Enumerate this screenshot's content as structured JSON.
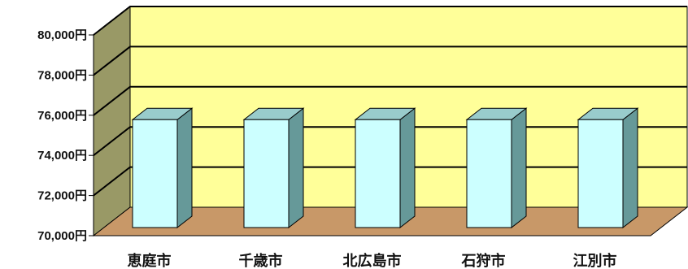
{
  "chart_data": {
    "type": "bar",
    "style": "3d-column",
    "categories": [
      "恵庭市",
      "千歳市",
      "北広島市",
      "石狩市",
      "江別市"
    ],
    "values": [
      75700,
      75700,
      75700,
      75700,
      75700
    ],
    "ylim": [
      70000,
      80000
    ],
    "ytick_step": 2000,
    "yunit_suffix": "円",
    "grid": true,
    "legend": "none",
    "colors": {
      "back_wall": "#ffff99",
      "side_wall": "#999966",
      "floor": "#c89868",
      "gridline": "#000000",
      "bar_front": "#ccffff",
      "bar_top": "#99cccc",
      "bar_side": "#669999",
      "bar_edge": "#000000"
    }
  }
}
